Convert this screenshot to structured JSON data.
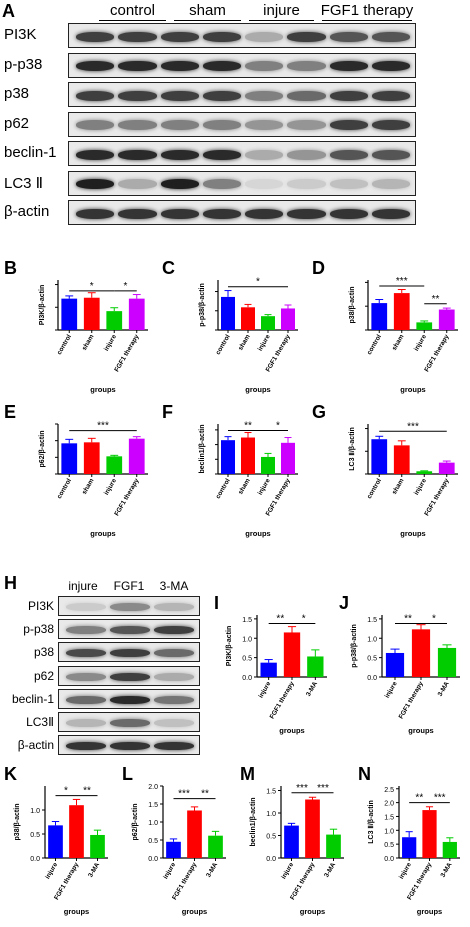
{
  "panelA": {
    "letter": "A",
    "groups": [
      "control",
      "sham",
      "injure",
      "FGF1 therapy"
    ],
    "proteins": [
      "PI3K",
      "p-p38",
      "p38",
      "p62",
      "beclin-1",
      "LC3 Ⅱ",
      "β-actin"
    ],
    "band_intensity": [
      [
        0.8,
        0.8,
        0.8,
        0.8,
        0.3,
        0.8,
        0.7,
        0.7
      ],
      [
        0.9,
        0.9,
        0.9,
        0.9,
        0.5,
        0.5,
        0.9,
        0.9
      ],
      [
        0.8,
        0.8,
        0.8,
        0.8,
        0.5,
        0.6,
        0.8,
        0.8
      ],
      [
        0.5,
        0.5,
        0.5,
        0.5,
        0.4,
        0.4,
        0.8,
        0.8
      ],
      [
        0.9,
        0.9,
        0.9,
        0.9,
        0.3,
        0.4,
        0.7,
        0.7
      ],
      [
        0.95,
        0.3,
        0.95,
        0.5,
        0.1,
        0.15,
        0.2,
        0.25
      ],
      [
        0.85,
        0.85,
        0.85,
        0.85,
        0.85,
        0.85,
        0.85,
        0.85
      ]
    ]
  },
  "panelH": {
    "letter": "H",
    "groups": [
      "injure",
      "FGF1",
      "3-MA"
    ],
    "proteins": [
      "PI3K",
      "p-p38",
      "p38",
      "p62",
      "beclin-1",
      "LC3Ⅱ",
      "β-actin"
    ],
    "band_intensity": [
      [
        0.15,
        0.45,
        0.25
      ],
      [
        0.5,
        0.7,
        0.8
      ],
      [
        0.75,
        0.8,
        0.6
      ],
      [
        0.45,
        0.8,
        0.3
      ],
      [
        0.6,
        0.9,
        0.55
      ],
      [
        0.25,
        0.6,
        0.2
      ],
      [
        0.85,
        0.85,
        0.85
      ]
    ]
  },
  "chart_data": [
    {
      "letter": "B",
      "type": "bar",
      "ylabel": "PI3K/β-actin",
      "xlabel": "groups",
      "categories": [
        "control",
        "sham",
        "injure",
        "FGF1 therapy"
      ],
      "values": [
        1.38,
        1.42,
        0.83,
        1.38
      ],
      "errors": [
        0.12,
        0.22,
        0.15,
        0.18
      ],
      "colors": [
        "#0000ff",
        "#ff0000",
        "#00cc00",
        "#cc00ff"
      ],
      "ylim": [
        0,
        2.2
      ],
      "sig": [
        {
          "from": 0,
          "to": 2,
          "label": "*",
          "level": 1.72
        },
        {
          "from": 2,
          "to": 3,
          "label": "*",
          "level": 1.72
        }
      ]
    },
    {
      "letter": "C",
      "type": "bar",
      "ylabel": "p-p38/β-actin",
      "xlabel": "groups",
      "categories": [
        "control",
        "sham",
        "injure",
        "FGF1 therapy"
      ],
      "values": [
        1.72,
        1.18,
        0.72,
        1.12
      ],
      "errors": [
        0.33,
        0.15,
        0.08,
        0.18
      ],
      "colors": [
        "#0000ff",
        "#ff0000",
        "#00cc00",
        "#cc00ff"
      ],
      "ylim": [
        0,
        2.6
      ],
      "sig": [
        {
          "from": 0,
          "to": 3,
          "label": "*",
          "level": 2.25
        }
      ]
    },
    {
      "letter": "D",
      "type": "bar",
      "ylabel": "p38/β-actin",
      "xlabel": "groups",
      "categories": [
        "control",
        "sham",
        "injure",
        "FGF1 therapy"
      ],
      "values": [
        1.13,
        1.55,
        0.32,
        0.86
      ],
      "errors": [
        0.15,
        0.15,
        0.06,
        0.06
      ],
      "colors": [
        "#0000ff",
        "#ff0000",
        "#00cc00",
        "#cc00ff"
      ],
      "ylim": [
        0,
        2.1
      ],
      "sig": [
        {
          "from": 0,
          "to": 2,
          "label": "***",
          "level": 1.85
        },
        {
          "from": 2,
          "to": 3,
          "label": "**",
          "level": 1.1
        }
      ]
    },
    {
      "letter": "E",
      "type": "bar",
      "ylabel": "p62/β-actin",
      "xlabel": "groups",
      "categories": [
        "control",
        "sham",
        "injure",
        "FGF1 therapy"
      ],
      "values": [
        0.92,
        0.95,
        0.53,
        1.06
      ],
      "errors": [
        0.12,
        0.12,
        0.03,
        0.06
      ],
      "colors": [
        "#0000ff",
        "#ff0000",
        "#00cc00",
        "#cc00ff"
      ],
      "ylim": [
        0,
        1.5
      ],
      "sig": [
        {
          "from": 0,
          "to": 3,
          "label": "***",
          "level": 1.3
        }
      ]
    },
    {
      "letter": "F",
      "type": "bar",
      "ylabel": "beclin1/β-actin",
      "xlabel": "groups",
      "categories": [
        "control",
        "sham",
        "injure",
        "FGF1 therapy"
      ],
      "values": [
        1.15,
        1.24,
        0.58,
        1.06
      ],
      "errors": [
        0.12,
        0.17,
        0.12,
        0.18
      ],
      "colors": [
        "#0000ff",
        "#ff0000",
        "#00cc00",
        "#cc00ff"
      ],
      "ylim": [
        0,
        1.7
      ],
      "sig": [
        {
          "from": 0,
          "to": 2,
          "label": "**",
          "level": 1.48
        },
        {
          "from": 2,
          "to": 3,
          "label": "*",
          "level": 1.48
        }
      ]
    },
    {
      "letter": "G",
      "type": "bar",
      "ylabel": "LC3 Ⅱ/β-actin",
      "xlabel": "groups",
      "categories": [
        "control",
        "sham",
        "injure",
        "FGF1 therapy"
      ],
      "values": [
        1.53,
        1.26,
        0.12,
        0.5
      ],
      "errors": [
        0.13,
        0.2,
        0.02,
        0.07
      ],
      "colors": [
        "#0000ff",
        "#ff0000",
        "#00cc00",
        "#cc00ff"
      ],
      "ylim": [
        0,
        2.2
      ],
      "sig": [
        {
          "from": 0,
          "to": 3,
          "label": "***",
          "level": 1.88
        }
      ]
    },
    {
      "letter": "I",
      "type": "bar",
      "ylabel": "PI3K/β-actin",
      "xlabel": "groups",
      "categories": [
        "injure",
        "FGF1 therapy",
        "3-MA"
      ],
      "values": [
        0.37,
        1.15,
        0.53
      ],
      "errors": [
        0.08,
        0.15,
        0.17
      ],
      "colors": [
        "#0000ff",
        "#ff0000",
        "#00cc00"
      ],
      "ylim": [
        0,
        1.6
      ],
      "yticks": [
        0,
        0.5,
        1,
        1.5
      ],
      "ticklabels": [
        "0.0",
        "0.5",
        "1.0",
        "1.5"
      ],
      "sig": [
        {
          "from": 0,
          "to": 1,
          "label": "**",
          "level": 1.38
        },
        {
          "from": 1,
          "to": 2,
          "label": "*",
          "level": 1.38
        }
      ]
    },
    {
      "letter": "J",
      "type": "bar",
      "ylabel": "p-p38/β-actin",
      "xlabel": "groups",
      "categories": [
        "injure",
        "FGF1 therapy",
        "3-MA"
      ],
      "values": [
        0.62,
        1.23,
        0.75
      ],
      "errors": [
        0.1,
        0.12,
        0.08
      ],
      "colors": [
        "#0000ff",
        "#ff0000",
        "#00cc00"
      ],
      "ylim": [
        0,
        1.6
      ],
      "yticks": [
        0,
        0.5,
        1,
        1.5
      ],
      "ticklabels": [
        "0.0",
        "0.5",
        "1.0",
        "1.5"
      ],
      "sig": [
        {
          "from": 0,
          "to": 1,
          "label": "**",
          "level": 1.38
        },
        {
          "from": 1,
          "to": 2,
          "label": "*",
          "level": 1.38
        }
      ]
    },
    {
      "letter": "K",
      "type": "bar",
      "ylabel": "p38/β-actin",
      "xlabel": "groups",
      "categories": [
        "injure",
        "FGF1 therapy",
        "3-MA"
      ],
      "values": [
        0.68,
        1.1,
        0.48
      ],
      "errors": [
        0.08,
        0.12,
        0.1
      ],
      "colors": [
        "#0000ff",
        "#ff0000",
        "#00cc00"
      ],
      "ylim": [
        0,
        1.5
      ],
      "yticks": [
        0,
        0.5,
        1
      ],
      "ticklabels": [
        "0.0",
        "0.5",
        "1.0"
      ],
      "sig": [
        {
          "from": 0,
          "to": 1,
          "label": "*",
          "level": 1.3
        },
        {
          "from": 1,
          "to": 2,
          "label": "**",
          "level": 1.3
        }
      ]
    },
    {
      "letter": "L",
      "type": "bar",
      "ylabel": "p62/β-actin",
      "xlabel": "groups",
      "categories": [
        "injure",
        "FGF1 therapy",
        "3-MA"
      ],
      "values": [
        0.45,
        1.32,
        0.62
      ],
      "errors": [
        0.08,
        0.1,
        0.12
      ],
      "colors": [
        "#0000ff",
        "#ff0000",
        "#00cc00"
      ],
      "ylim": [
        0,
        2.0
      ],
      "yticks": [
        0,
        0.5,
        1,
        1.5,
        2
      ],
      "ticklabels": [
        "0.0",
        "0.5",
        "1.0",
        "1.5",
        "2.0"
      ],
      "sig": [
        {
          "from": 0,
          "to": 1,
          "label": "***",
          "level": 1.65
        },
        {
          "from": 1,
          "to": 2,
          "label": "**",
          "level": 1.65
        }
      ]
    },
    {
      "letter": "M",
      "type": "bar",
      "ylabel": "beclin1/β-actin",
      "xlabel": "groups",
      "categories": [
        "injure",
        "FGF1 therapy",
        "3-MA"
      ],
      "values": [
        0.72,
        1.3,
        0.52
      ],
      "errors": [
        0.05,
        0.05,
        0.12
      ],
      "colors": [
        "#0000ff",
        "#ff0000",
        "#00cc00"
      ],
      "ylim": [
        0,
        1.6
      ],
      "yticks": [
        0,
        0.5,
        1,
        1.5
      ],
      "ticklabels": [
        "0.0",
        "0.5",
        "1.0",
        "1.5"
      ],
      "sig": [
        {
          "from": 0,
          "to": 1,
          "label": "***",
          "level": 1.45
        },
        {
          "from": 1,
          "to": 2,
          "label": "***",
          "level": 1.45
        }
      ]
    },
    {
      "letter": "N",
      "type": "bar",
      "ylabel": "LC3 Ⅱ/β-actin",
      "xlabel": "groups",
      "categories": [
        "injure",
        "FGF1 therapy",
        "3-MA"
      ],
      "values": [
        0.75,
        1.73,
        0.58
      ],
      "errors": [
        0.2,
        0.12,
        0.15
      ],
      "colors": [
        "#0000ff",
        "#ff0000",
        "#00cc00"
      ],
      "ylim": [
        0,
        2.6
      ],
      "yticks": [
        0,
        0.5,
        1,
        1.5,
        2,
        2.5
      ],
      "ticklabels": [
        "0.0",
        "0.5",
        "1.0",
        "1.5",
        "2.0",
        "2.5"
      ],
      "sig": [
        {
          "from": 0,
          "to": 1,
          "label": "**",
          "level": 2.0
        },
        {
          "from": 1,
          "to": 2,
          "label": "***",
          "level": 2.0
        }
      ]
    }
  ]
}
